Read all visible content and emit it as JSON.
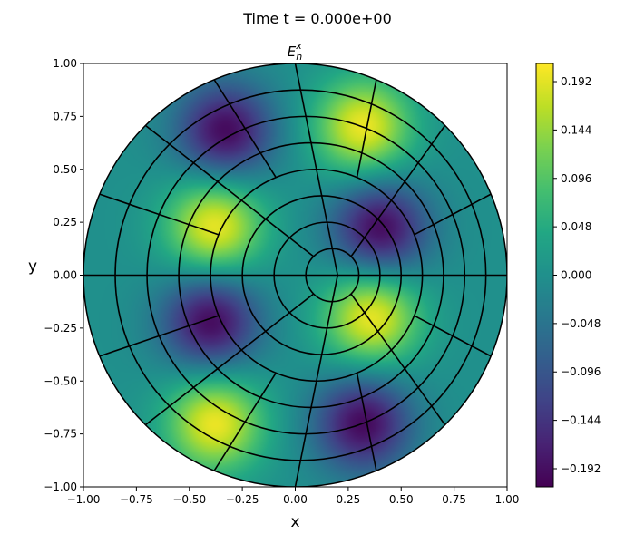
{
  "figure": {
    "suptitle": "Time t =  0.000e+00"
  },
  "chart_data": {
    "type": "heatmap",
    "title_base": "E",
    "title_sub": "h",
    "title_sup": "x",
    "xlabel": "x",
    "ylabel": "y",
    "xlim": [
      -1.0,
      1.0
    ],
    "ylim": [
      -1.0,
      1.0
    ],
    "xticks": [
      "−1.00",
      "−0.75",
      "−0.50",
      "−0.25",
      "0.00",
      "0.25",
      "0.50",
      "0.75",
      "1.00"
    ],
    "yticks": [
      "−1.00",
      "−0.75",
      "−0.50",
      "−0.25",
      "0.00",
      "0.25",
      "0.50",
      "0.75",
      "1.00"
    ],
    "domain": "unit disk",
    "mesh": {
      "center": [
        0.2,
        0.0
      ],
      "radial_levels": 8,
      "spokes_per_level": [
        4,
        8,
        8,
        8,
        16,
        16,
        16,
        16
      ]
    },
    "colormap": "viridis",
    "colorbar": {
      "vmin": -0.21,
      "vmax": 0.21,
      "ticks": [
        "−0.192",
        "−0.144",
        "−0.096",
        "−0.048",
        "0.000",
        "0.048",
        "0.096",
        "0.144",
        "0.192"
      ]
    },
    "extrema": [
      {
        "x": 0.32,
        "y": 0.7,
        "value": 0.2
      },
      {
        "x": -0.38,
        "y": 0.23,
        "value": 0.2
      },
      {
        "x": 0.36,
        "y": -0.2,
        "value": 0.2
      },
      {
        "x": -0.38,
        "y": -0.7,
        "value": 0.2
      },
      {
        "x": -0.33,
        "y": 0.68,
        "value": -0.2
      },
      {
        "x": 0.4,
        "y": 0.22,
        "value": -0.2
      },
      {
        "x": -0.4,
        "y": -0.22,
        "value": -0.2
      },
      {
        "x": 0.32,
        "y": -0.7,
        "value": -0.2
      }
    ],
    "grid": false,
    "aspect": "equal"
  }
}
